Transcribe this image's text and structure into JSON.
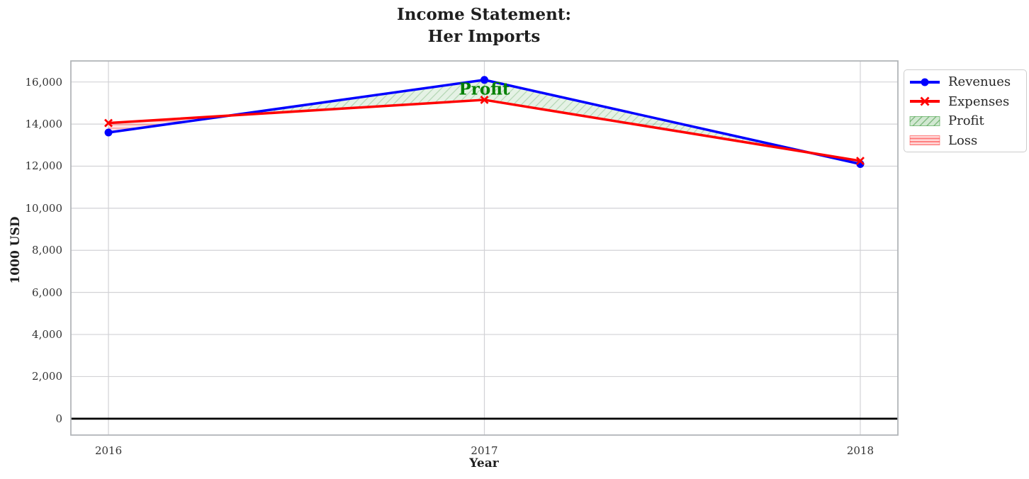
{
  "chart_data": {
    "type": "line",
    "title": "Income Statement:\nHer Imports",
    "xlabel": "Year",
    "ylabel": "1000 USD",
    "x": [
      2016,
      2017,
      2018
    ],
    "series": [
      {
        "name": "Revenues",
        "values": [
          13600,
          16100,
          12100
        ],
        "color": "#0000ff",
        "marker": "circle"
      },
      {
        "name": "Expenses",
        "values": [
          14050,
          15150,
          12250
        ],
        "color": "#ff0000",
        "marker": "x"
      }
    ],
    "fill_between": [
      {
        "name": "Profit",
        "where": "revenues_above_expenses",
        "color": "#008000",
        "hatch": "diagonal"
      },
      {
        "name": "Loss",
        "where": "expenses_above_revenues",
        "color": "#ff0000",
        "hatch": "horizontal"
      }
    ],
    "annotation": {
      "text": "Profit",
      "x": 2017,
      "y": 15650,
      "color": "#008000"
    },
    "xticks": [
      2016,
      2017,
      2018
    ],
    "xtick_labels": [
      "2016",
      "2017",
      "2018"
    ],
    "yticks": [
      0,
      2000,
      4000,
      6000,
      8000,
      10000,
      12000,
      14000,
      16000
    ],
    "ytick_labels": [
      "0",
      "2,000",
      "4,000",
      "6,000",
      "8,000",
      "10,000",
      "12,000",
      "14,000",
      "16,000"
    ],
    "xlim": [
      2015.9,
      2018.1
    ],
    "ylim": [
      -780,
      17000
    ],
    "zero_line": true,
    "grid": true,
    "legend_position": "upper-right-outside",
    "legend": {
      "items": [
        {
          "label": "Revenues"
        },
        {
          "label": "Expenses"
        },
        {
          "label": "Profit"
        },
        {
          "label": "Loss"
        }
      ]
    },
    "colors": {
      "revenues": "#0000ff",
      "expenses": "#ff0000",
      "profit_fill": "#008000",
      "loss_fill": "#ff0000",
      "grid": "#d2d2d6",
      "spine": "#b2b6ba",
      "zero_line": "#000000"
    }
  }
}
